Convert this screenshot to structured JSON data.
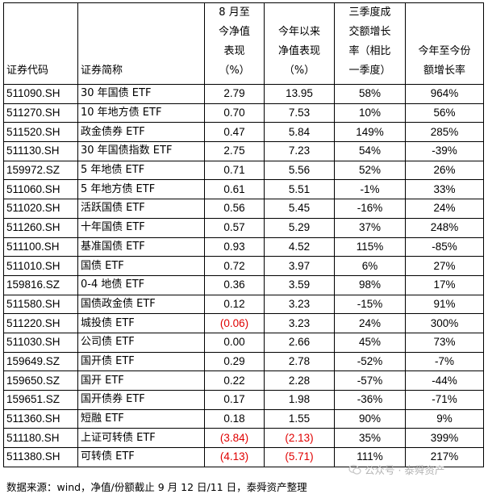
{
  "headers": {
    "code": [
      "证券代码"
    ],
    "name": [
      "证券简称"
    ],
    "aug_nav": [
      "8 月至",
      "今净值",
      "表现",
      "（%）"
    ],
    "ytd_nav": [
      "今年以来",
      "净值表现",
      "（%）"
    ],
    "q3_volume": [
      "三季度成",
      "交额增长",
      "率（相比",
      "一季度）"
    ],
    "ytd_share": [
      "今年至今份",
      "额增长率"
    ]
  },
  "rows": [
    {
      "code": "511090.SH",
      "name": "30 年国债 ETF",
      "aug_nav": "2.79",
      "ytd_nav": "13.95",
      "q3_volume": "58%",
      "ytd_share": "964%",
      "aug_neg": false,
      "ytd_neg": false
    },
    {
      "code": "511270.SH",
      "name": "10 年地方债 ETF",
      "aug_nav": "0.70",
      "ytd_nav": "7.53",
      "q3_volume": "10%",
      "ytd_share": "56%",
      "aug_neg": false,
      "ytd_neg": false
    },
    {
      "code": "511520.SH",
      "name": "政金债券 ETF",
      "aug_nav": "0.47",
      "ytd_nav": "5.84",
      "q3_volume": "149%",
      "ytd_share": "285%",
      "aug_neg": false,
      "ytd_neg": false
    },
    {
      "code": "511130.SH",
      "name": "30 年国债指数 ETF",
      "aug_nav": "2.75",
      "ytd_nav": "7.23",
      "q3_volume": "54%",
      "ytd_share": "-39%",
      "aug_neg": false,
      "ytd_neg": false
    },
    {
      "code": "159972.SZ",
      "name": "5 年地债 ETF",
      "aug_nav": "0.71",
      "ytd_nav": "5.56",
      "q3_volume": "52%",
      "ytd_share": "26%",
      "aug_neg": false,
      "ytd_neg": false
    },
    {
      "code": "511060.SH",
      "name": "5 年地方债 ETF",
      "aug_nav": "0.61",
      "ytd_nav": "5.51",
      "q3_volume": "-1%",
      "ytd_share": "33%",
      "aug_neg": false,
      "ytd_neg": false
    },
    {
      "code": "511020.SH",
      "name": "活跃国债 ETF",
      "aug_nav": "0.56",
      "ytd_nav": "5.45",
      "q3_volume": "-16%",
      "ytd_share": "24%",
      "aug_neg": false,
      "ytd_neg": false
    },
    {
      "code": "511260.SH",
      "name": "十年国债 ETF",
      "aug_nav": "0.57",
      "ytd_nav": "5.29",
      "q3_volume": "37%",
      "ytd_share": "248%",
      "aug_neg": false,
      "ytd_neg": false
    },
    {
      "code": "511100.SH",
      "name": "基准国债 ETF",
      "aug_nav": "0.93",
      "ytd_nav": "4.52",
      "q3_volume": "115%",
      "ytd_share": "-85%",
      "aug_neg": false,
      "ytd_neg": false
    },
    {
      "code": "511010.SH",
      "name": "国债 ETF",
      "aug_nav": "0.72",
      "ytd_nav": "3.97",
      "q3_volume": "6%",
      "ytd_share": "27%",
      "aug_neg": false,
      "ytd_neg": false
    },
    {
      "code": "159816.SZ",
      "name": "0-4 地债 ETF",
      "aug_nav": "0.36",
      "ytd_nav": "3.59",
      "q3_volume": "98%",
      "ytd_share": "17%",
      "aug_neg": false,
      "ytd_neg": false
    },
    {
      "code": "511580.SH",
      "name": "国债政金债 ETF",
      "aug_nav": "0.12",
      "ytd_nav": "3.23",
      "q3_volume": "-15%",
      "ytd_share": "91%",
      "aug_neg": false,
      "ytd_neg": false
    },
    {
      "code": "511220.SH",
      "name": "城投债 ETF",
      "aug_nav": "(0.06)",
      "ytd_nav": "3.23",
      "q3_volume": "24%",
      "ytd_share": "300%",
      "aug_neg": true,
      "ytd_neg": false
    },
    {
      "code": "511030.SH",
      "name": "公司债 ETF",
      "aug_nav": "0.00",
      "ytd_nav": "2.66",
      "q3_volume": "45%",
      "ytd_share": "73%",
      "aug_neg": false,
      "ytd_neg": false
    },
    {
      "code": "159649.SZ",
      "name": "国开债 ETF",
      "aug_nav": "0.29",
      "ytd_nav": "2.78",
      "q3_volume": "-52%",
      "ytd_share": "-7%",
      "aug_neg": false,
      "ytd_neg": false
    },
    {
      "code": "159650.SZ",
      "name": "国开 ETF",
      "aug_nav": "0.22",
      "ytd_nav": "2.28",
      "q3_volume": "-57%",
      "ytd_share": "-44%",
      "aug_neg": false,
      "ytd_neg": false
    },
    {
      "code": "159651.SZ",
      "name": "国开债券 ETF",
      "aug_nav": "0.17",
      "ytd_nav": "1.98",
      "q3_volume": "-36%",
      "ytd_share": "-71%",
      "aug_neg": false,
      "ytd_neg": false
    },
    {
      "code": "511360.SH",
      "name": "短融 ETF",
      "aug_nav": "0.18",
      "ytd_nav": "1.55",
      "q3_volume": "90%",
      "ytd_share": "9%",
      "aug_neg": false,
      "ytd_neg": false
    },
    {
      "code": "511180.SH",
      "name": "上证可转债 ETF",
      "aug_nav": "(3.84)",
      "ytd_nav": "(2.13)",
      "q3_volume": "35%",
      "ytd_share": "399%",
      "aug_neg": true,
      "ytd_neg": true
    },
    {
      "code": "511380.SH",
      "name": "可转债 ETF",
      "aug_nav": "(4.13)",
      "ytd_nav": "(5.71)",
      "q3_volume": "111%",
      "ytd_share": "217%",
      "aug_neg": true,
      "ytd_neg": true
    }
  ],
  "source_note": "数据来源：wind，净值/份额截止 9 月 12 日/11 日，泰舜资产整理",
  "watermark": "公众号 · 泰舜资产",
  "colors": {
    "negative": "#e00000",
    "watermark": "#b4b4b4"
  }
}
